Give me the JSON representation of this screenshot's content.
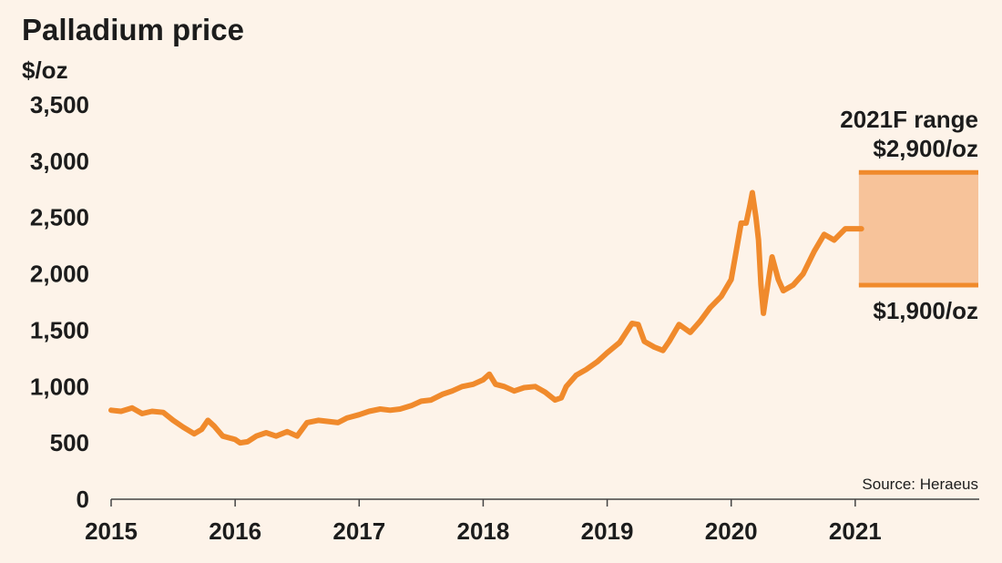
{
  "chart_data": {
    "type": "line",
    "title": "Palladium price",
    "ylabel": "$/oz",
    "source": "Source: Heraeus",
    "ylim": [
      0,
      3500
    ],
    "xlim": [
      2015,
      2022
    ],
    "y_ticks": [
      0,
      500,
      1000,
      1500,
      2000,
      2500,
      3000,
      3500
    ],
    "y_tick_labels": [
      "0",
      "500",
      "1,000",
      "1,500",
      "2,000",
      "2,500",
      "3,000",
      "3,500"
    ],
    "x_ticks": [
      2015,
      2016,
      2017,
      2018,
      2019,
      2020,
      2021
    ],
    "x_tick_labels": [
      "2015",
      "2016",
      "2017",
      "2018",
      "2019",
      "2020",
      "2021"
    ],
    "grid": false,
    "line_color": "#f08a2c",
    "range_fill_color": "#f7c39a",
    "series": [
      {
        "x": [
          2015.0,
          2015.08,
          2015.17,
          2015.25,
          2015.33,
          2015.42,
          2015.5,
          2015.58,
          2015.67,
          2015.73,
          2015.78,
          2015.83,
          2015.9,
          2016.0,
          2016.04,
          2016.1,
          2016.17,
          2016.25,
          2016.33,
          2016.42,
          2016.5,
          2016.58,
          2016.67,
          2016.75,
          2016.83,
          2016.9,
          2017.0,
          2017.08,
          2017.17,
          2017.25,
          2017.33,
          2017.42,
          2017.5,
          2017.58,
          2017.67,
          2017.75,
          2017.83,
          2017.92,
          2018.0,
          2018.05,
          2018.1,
          2018.17,
          2018.25,
          2018.33,
          2018.42,
          2018.5,
          2018.58,
          2018.63,
          2018.67,
          2018.75,
          2018.83,
          2018.92,
          2019.0,
          2019.1,
          2019.2,
          2019.25,
          2019.3,
          2019.38,
          2019.45,
          2019.5,
          2019.58,
          2019.67,
          2019.75,
          2019.83,
          2019.92,
          2020.0,
          2020.04,
          2020.08,
          2020.12,
          2020.15,
          2020.17,
          2020.2,
          2020.22,
          2020.24,
          2020.26,
          2020.28,
          2020.33,
          2020.38,
          2020.42,
          2020.5,
          2020.58,
          2020.67,
          2020.75,
          2020.83,
          2020.92,
          2021.0,
          2021.05
        ],
        "y": [
          790,
          780,
          810,
          760,
          780,
          770,
          700,
          640,
          580,
          620,
          700,
          650,
          560,
          530,
          500,
          510,
          560,
          590,
          560,
          600,
          560,
          680,
          700,
          690,
          680,
          720,
          750,
          780,
          800,
          790,
          800,
          830,
          870,
          880,
          930,
          960,
          1000,
          1020,
          1060,
          1110,
          1020,
          1000,
          960,
          990,
          1000,
          950,
          880,
          900,
          1000,
          1100,
          1150,
          1220,
          1300,
          1390,
          1560,
          1550,
          1400,
          1350,
          1320,
          1400,
          1550,
          1480,
          1580,
          1700,
          1800,
          1950,
          2200,
          2450,
          2450,
          2600,
          2720,
          2500,
          2300,
          1900,
          1650,
          1800,
          2150,
          1950,
          1850,
          1900,
          2000,
          2200,
          2350,
          2300,
          2400,
          2400,
          2400
        ]
      }
    ],
    "range": {
      "label": "2021F range",
      "high": 2900,
      "low": 1900,
      "high_label": "$2,900/oz",
      "low_label": "$1,900/oz",
      "x_start": 2021.0,
      "x_end": 2022.0
    }
  }
}
